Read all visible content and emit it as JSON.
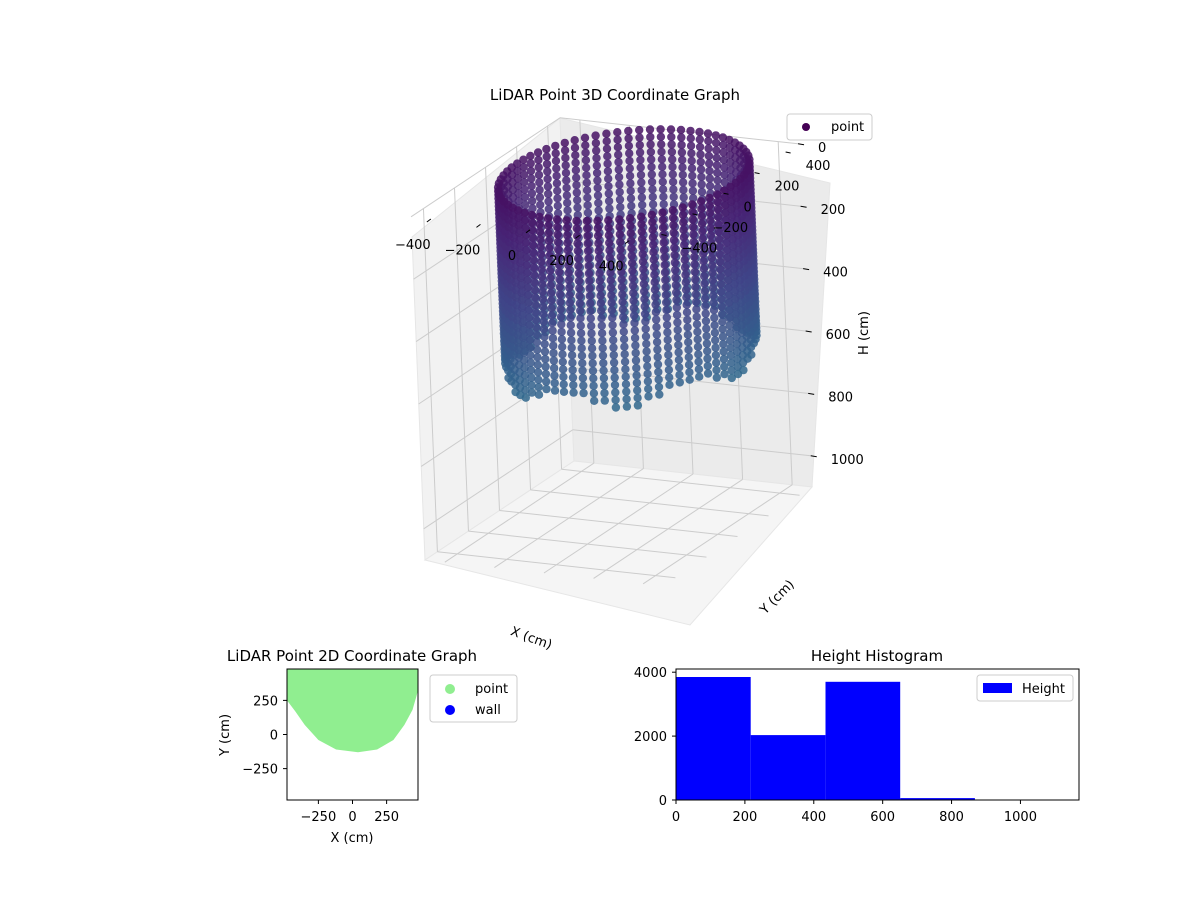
{
  "chart_data": [
    {
      "id": "lidar3d",
      "type": "scatter",
      "title": "LiDAR Point 3D Coordinate Graph",
      "xlabel": "X (cm)",
      "ylabel": "Y (cm)",
      "zlabel": "H (cm)",
      "x_ticks": [
        "−400",
        "−200",
        "0",
        "200",
        "400"
      ],
      "y_ticks": [
        "400",
        "200",
        "0",
        "−200",
        "−400"
      ],
      "z_ticks": [
        "0",
        "200",
        "400",
        "600",
        "800",
        "1000"
      ],
      "xlim": [
        -480,
        480
      ],
      "ylim": [
        -480,
        480
      ],
      "zlim": [
        0,
        1100
      ],
      "z_inverted": true,
      "legend": [
        {
          "label": "point",
          "color": "#440154"
        }
      ],
      "legend_position": "upper right",
      "colormap": "viridis",
      "series": [
        {
          "name": "point",
          "shape": "partial cylinder of vertical point columns around the scanner",
          "radius": 430,
          "center": [
            40,
            60
          ],
          "height_min": 0,
          "height_max": 620,
          "color_by": "height"
        }
      ]
    },
    {
      "id": "lidar2d",
      "type": "scatter",
      "title": "LiDAR Point 2D Coordinate Graph",
      "xlabel": "X (cm)",
      "ylabel": "Y (cm)",
      "x_ticks": [
        "−250",
        "0",
        "250"
      ],
      "y_ticks": [
        "250",
        "0",
        "−250"
      ],
      "xlim": [
        -480,
        480
      ],
      "ylim": [
        -480,
        480
      ],
      "legend": [
        {
          "label": "point",
          "color": "#90ee90"
        },
        {
          "label": "wall",
          "color": "#0000ff"
        }
      ],
      "legend_position": "outside right",
      "series": [
        {
          "name": "point",
          "color": "#90ee90",
          "region_boundary": [
            [
              -480,
              480
            ],
            [
              -480,
              250
            ],
            [
              -420,
              170
            ],
            [
              -350,
              70
            ],
            [
              -250,
              -40
            ],
            [
              -120,
              -110
            ],
            [
              40,
              -130
            ],
            [
              180,
              -110
            ],
            [
              300,
              -40
            ],
            [
              380,
              70
            ],
            [
              440,
              180
            ],
            [
              480,
              320
            ],
            [
              480,
              480
            ]
          ]
        },
        {
          "name": "wall",
          "color": "#0000ff",
          "points": []
        }
      ]
    },
    {
      "id": "height_hist",
      "type": "bar",
      "title": "Height Histogram",
      "xlabel": "",
      "ylabel": "",
      "x_ticks": [
        "0",
        "200",
        "400",
        "600",
        "800",
        "1000"
      ],
      "y_ticks": [
        "0",
        "2000",
        "4000"
      ],
      "xlim": [
        0,
        1170
      ],
      "ylim": [
        0,
        4100
      ],
      "legend": [
        {
          "label": "Height",
          "color": "#0000ff"
        }
      ],
      "legend_position": "upper right",
      "bin_edges": [
        0,
        217,
        434,
        651,
        868,
        1085
      ],
      "values": [
        3850,
        2030,
        3700,
        60,
        0
      ],
      "color": "#0000ff"
    }
  ]
}
